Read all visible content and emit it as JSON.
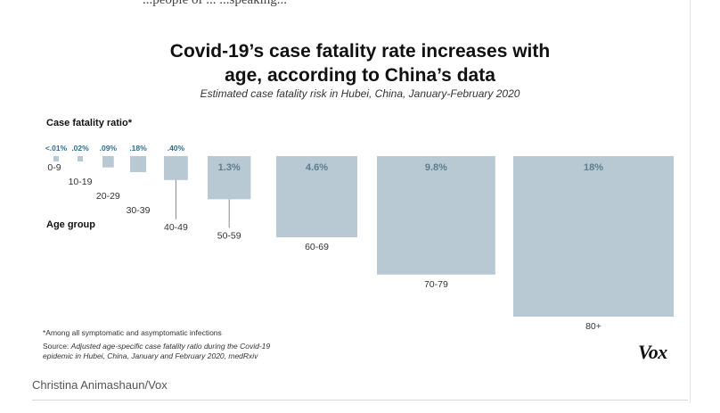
{
  "header_fragment": "...people of ... ...speaking...",
  "chart_data": {
    "type": "bar",
    "title": "Covid-19's case fatality rate increases with age, according to China's data",
    "title_line1": "Covid-19’s case fatality rate increases with",
    "title_line2": "age, according to China’s data",
    "subtitle": "Estimated case fatality risk in Hubei, China, January-February 2020",
    "value_axis_label": "Case fatality ratio*",
    "category_axis_label": "Age group",
    "categories": [
      "0-9",
      "10-19",
      "20-29",
      "30-39",
      "40-49",
      "50-59",
      "60-69",
      "70-79",
      "80+"
    ],
    "values": [
      0.01,
      0.02,
      0.09,
      0.18,
      0.4,
      1.3,
      4.6,
      9.8,
      18
    ],
    "value_labels": [
      "<.01%",
      ".02%",
      ".09%",
      ".18%",
      ".40%",
      "1.3%",
      "4.6%",
      "9.8%",
      "18%"
    ],
    "bar_color": "#b8c9d3",
    "label_color_small": "#2f6e8f",
    "label_color_large": "#5d7d8d"
  },
  "footnote": "*Among all symptomatic and asymptomatic infections",
  "source_prefix": "Source: ",
  "source_line1": "Adjusted age-specific case fatality ratio during the Covid-19",
  "source_line2": "epidemic in Hubei, China, January and February 2020, medRxiv",
  "logo": "Vox",
  "credit": "Christina Animashaun/Vox"
}
